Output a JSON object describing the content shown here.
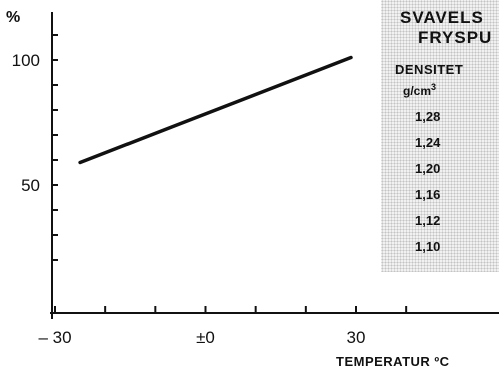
{
  "colors": {
    "line": "#111111",
    "panel_bg": "#f1f1f1",
    "panel_dots": "#c4c4c4"
  },
  "chart_data": {
    "type": "line",
    "ylabel": "%",
    "xlabel": "TEMPERATUR ºC",
    "x_tick_labels": [
      "– 30",
      "±0",
      "30"
    ],
    "y_tick_labels": [
      "100",
      "50"
    ],
    "xlim": [
      -30,
      30
    ],
    "ylim": [
      10,
      110
    ],
    "series": [
      {
        "x": [
          -25,
          29
        ],
        "y": [
          59,
          101
        ]
      }
    ]
  },
  "legend_panel": {
    "title_line1": "SVAVELS",
    "title_line2": "FRYSPU",
    "column_header": "DENSITET",
    "unit": "g/cm",
    "unit_sup": "3",
    "densities": [
      "1,28",
      "1,24",
      "1,20",
      "1,16",
      "1,12",
      "1,10"
    ]
  }
}
